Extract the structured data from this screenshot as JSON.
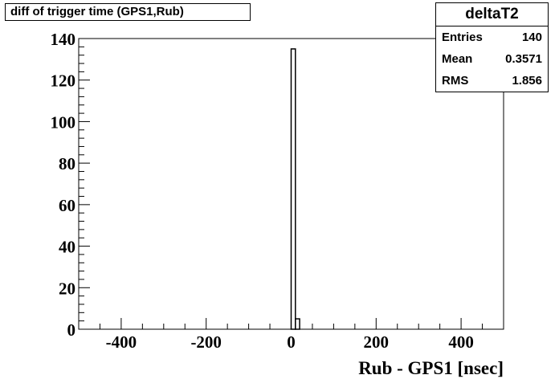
{
  "chart_data": {
    "type": "bar",
    "title": "diff of trigger time (GPS1,Rub)",
    "xlabel": "Rub - GPS1 [nsec]",
    "ylabel": "",
    "xlim": [
      -500,
      500
    ],
    "ylim": [
      0,
      140
    ],
    "x_ticks": [
      -400,
      -200,
      0,
      200,
      400
    ],
    "y_ticks": [
      0,
      20,
      40,
      60,
      80,
      100,
      120,
      140
    ],
    "x_tick_labels": [
      "-400",
      "-200",
      "0",
      "200",
      "400"
    ],
    "y_tick_labels": [
      "0",
      "20",
      "40",
      "60",
      "80",
      "100",
      "120",
      "140"
    ],
    "bins": [
      {
        "x_low": 0,
        "x_high": 10,
        "value": 135
      },
      {
        "x_low": 10,
        "x_high": 20,
        "value": 5
      }
    ],
    "grid": false,
    "stats": {
      "name": "deltaT2",
      "entries_label": "Entries",
      "entries_value": "140",
      "mean_label": "Mean",
      "mean_value": "0.3571",
      "rms_label": "RMS",
      "rms_value": "1.856"
    }
  }
}
